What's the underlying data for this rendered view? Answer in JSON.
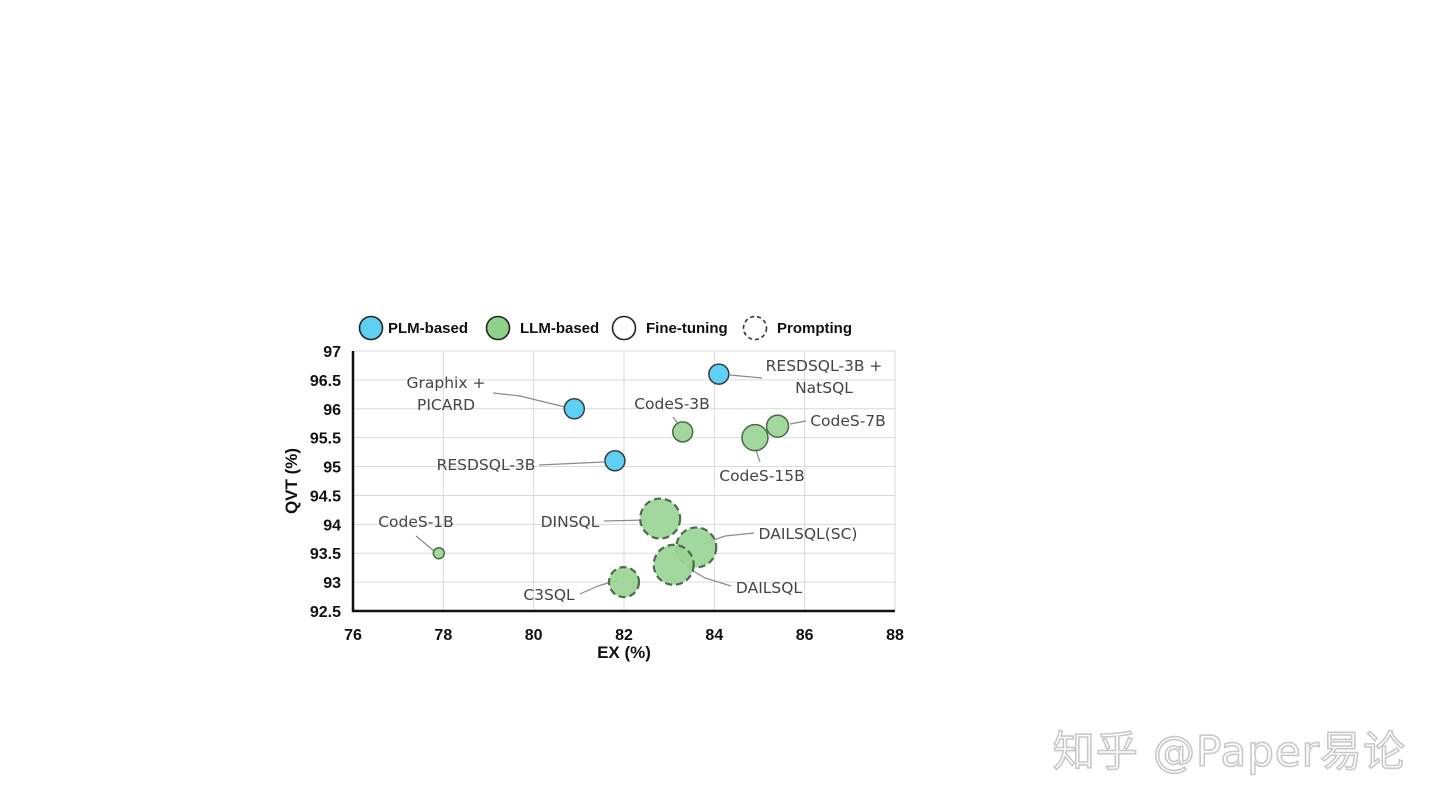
{
  "chart_data": {
    "type": "scatter",
    "xlabel": "EX (%)",
    "ylabel": "QVT (%)",
    "xlim": [
      76,
      88
    ],
    "ylim": [
      92.5,
      97
    ],
    "xticks": [
      "76",
      "78",
      "80",
      "82",
      "84",
      "86",
      "88"
    ],
    "yticks": [
      "92.5",
      "93",
      "93.5",
      "94",
      "94.5",
      "95",
      "95.5",
      "96",
      "96.5",
      "97"
    ],
    "grid": true,
    "legend": {
      "position": "top",
      "entries": [
        {
          "label": "PLM-based",
          "fill": "#5dd0f3",
          "style": "solid"
        },
        {
          "label": "LLM-based",
          "fill": "#8fd18a",
          "style": "solid"
        },
        {
          "label": "Fine-tuning",
          "fill": "#ffffff",
          "style": "solid"
        },
        {
          "label": "Prompting",
          "fill": "#ffffff",
          "style": "dashed"
        }
      ]
    },
    "colors": {
      "PLM": "#5dd0f3",
      "LLM": "#9ad595",
      "stroke": "#3a3a3a",
      "llm_stroke": "#4a6b48",
      "grid": "#d9d9d9",
      "label": "#444444"
    },
    "points": [
      {
        "name": "Graphix + PICARD",
        "label_lines": [
          "Graphix +",
          "PICARD"
        ],
        "x": 80.9,
        "y": 96.0,
        "family": "PLM",
        "method": "fine-tuning",
        "size": 1.0
      },
      {
        "name": "RESDSQL-3B + NatSQL",
        "label_lines": [
          "RESDSQL-3B +",
          "NatSQL"
        ],
        "x": 84.1,
        "y": 96.6,
        "family": "PLM",
        "method": "fine-tuning",
        "size": 1.0
      },
      {
        "name": "RESDSQL-3B",
        "label_lines": [
          "RESDSQL-3B"
        ],
        "x": 81.8,
        "y": 95.1,
        "family": "PLM",
        "method": "fine-tuning",
        "size": 1.0
      },
      {
        "name": "CodeS-3B",
        "label_lines": [
          "CodeS-3B"
        ],
        "x": 83.3,
        "y": 95.6,
        "family": "LLM",
        "method": "fine-tuning",
        "size": 1.0
      },
      {
        "name": "CodeS-7B",
        "label_lines": [
          "CodeS-7B"
        ],
        "x": 85.4,
        "y": 95.7,
        "family": "LLM",
        "method": "fine-tuning",
        "size": 1.1
      },
      {
        "name": "CodeS-15B",
        "label_lines": [
          "CodeS-15B"
        ],
        "x": 84.9,
        "y": 95.5,
        "family": "LLM",
        "method": "fine-tuning",
        "size": 1.3
      },
      {
        "name": "CodeS-1B",
        "label_lines": [
          "CodeS-1B"
        ],
        "x": 77.9,
        "y": 93.5,
        "family": "LLM",
        "method": "fine-tuning",
        "size": 0.55
      },
      {
        "name": "DINSQL",
        "label_lines": [
          "DINSQL"
        ],
        "x": 82.8,
        "y": 94.1,
        "family": "LLM",
        "method": "prompting",
        "size": 2.0
      },
      {
        "name": "DAILSQL(SC)",
        "label_lines": [
          "DAILSQL(SC)"
        ],
        "x": 83.6,
        "y": 93.6,
        "family": "LLM",
        "method": "prompting",
        "size": 2.0
      },
      {
        "name": "DAILSQL",
        "label_lines": [
          "DAILSQL"
        ],
        "x": 83.1,
        "y": 93.3,
        "family": "LLM",
        "method": "prompting",
        "size": 2.0
      },
      {
        "name": "C3SQL",
        "label_lines": [
          "C3SQL"
        ],
        "x": 82.0,
        "y": 93.0,
        "family": "LLM",
        "method": "prompting",
        "size": 1.5
      }
    ]
  },
  "watermark": "知乎 @Paper易论"
}
